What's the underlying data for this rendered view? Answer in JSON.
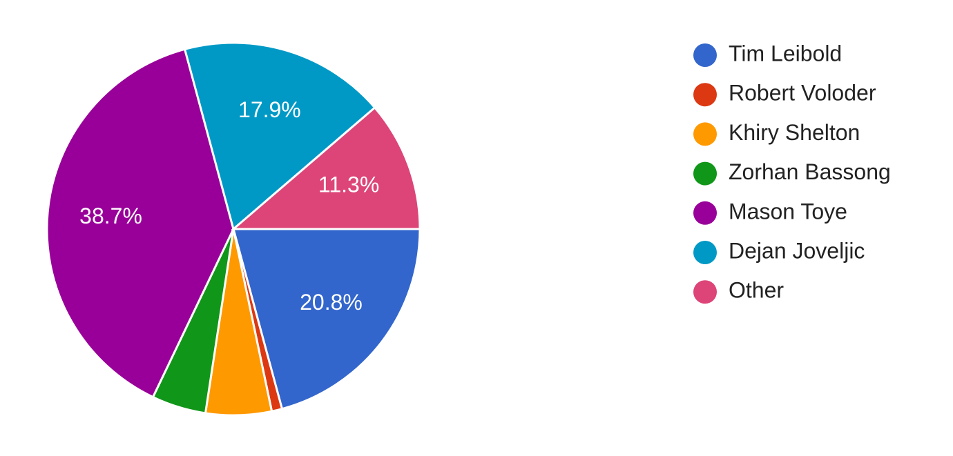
{
  "chart_data": {
    "type": "pie",
    "categories": [
      "Tim Leibold",
      "Robert Voloder",
      "Khiry Shelton",
      "Zorhan Bassong",
      "Mason Toye",
      "Dejan Joveljic",
      "Other"
    ],
    "values": [
      20.8,
      0.9,
      5.7,
      4.7,
      38.7,
      17.9,
      11.3
    ],
    "value_labels": [
      "20.8%",
      null,
      null,
      null,
      "38.7%",
      "17.9%",
      "11.3%"
    ],
    "colors": [
      "#3366cc",
      "#dc3912",
      "#ff9900",
      "#109618",
      "#990099",
      "#0099c6",
      "#dd4477"
    ],
    "legend": "right"
  }
}
